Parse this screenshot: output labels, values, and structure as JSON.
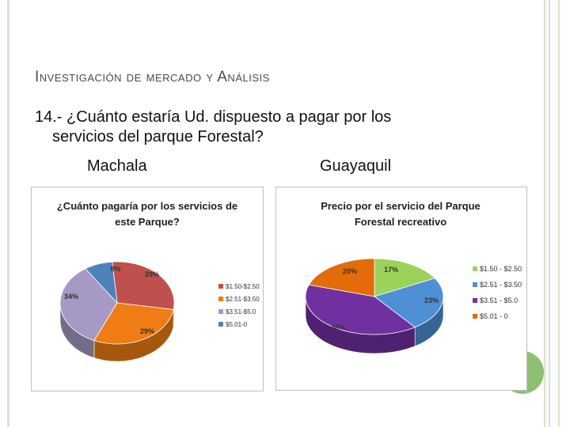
{
  "slide": {
    "title": "Investigación de mercado y Análisis",
    "question_line1": "14.- ¿Cuánto estaría Ud. dispuesto a pagar por los",
    "question_line2": "servicios del parque Forestal?",
    "city_left": "Machala",
    "city_right": "Guayaquil"
  },
  "colors": {
    "rail": "#d9e4cf",
    "accent_circle": "#8fbf73"
  },
  "chart_data": [
    {
      "type": "pie",
      "title_lines": [
        "¿Cuánto pagaría por los servicios de",
        "este Parque?"
      ],
      "categories": [
        "$1.50-$2.50",
        "$2.51-$3.50",
        "$3.51-$5.0",
        "$5.01-0"
      ],
      "values": [
        29,
        29,
        34,
        8
      ],
      "labels": [
        "29%",
        "29%",
        "34%",
        "8%"
      ],
      "colors": [
        "#c0504d",
        "#f07c14",
        "#a69ac4",
        "#4f81bd"
      ],
      "legend": "right"
    },
    {
      "type": "pie",
      "title_lines": [
        "Precio por el servicio del Parque",
        "Forestal recreativo"
      ],
      "categories": [
        "$1.50 - $2.50",
        "$2.51 - $3.50",
        "$3.51 - $5.0",
        "$5.01 - 0"
      ],
      "values": [
        17,
        23,
        40,
        20
      ],
      "labels": [
        "17%",
        "23%",
        "40%",
        "20%"
      ],
      "colors": [
        "#9bd35a",
        "#4f8fd6",
        "#7030a0",
        "#e36c09"
      ],
      "legend": "right"
    }
  ]
}
